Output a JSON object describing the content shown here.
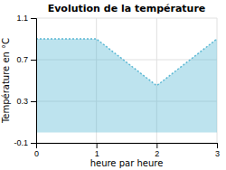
{
  "chart_data": {
    "type": "area",
    "title": "Evolution de la température",
    "xlabel": "heure par heure",
    "ylabel": "Température en °C",
    "x": [
      0,
      1,
      2,
      3
    ],
    "values": [
      0.9,
      0.9,
      0.45,
      0.9
    ],
    "xlim": [
      0,
      3
    ],
    "ylim": [
      -0.1,
      1.1
    ],
    "xticks": [
      0,
      1,
      2,
      3
    ],
    "yticks": [
      -0.1,
      0.3,
      0.7,
      1.1
    ],
    "grid": true,
    "color": "#5bb8d4",
    "line_style": "dotted"
  }
}
